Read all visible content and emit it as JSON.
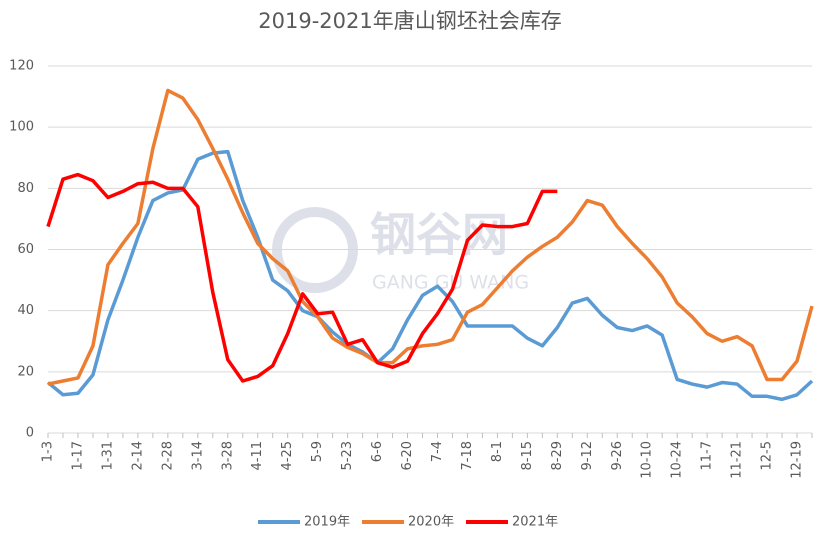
{
  "chart_data": {
    "type": "line",
    "title": "2019-2021年唐山钢坯社会库存",
    "watermark": {
      "name": "钢谷网",
      "subtitle": "GANG GU WANG"
    },
    "categories": [
      "1-3",
      null,
      "1-17",
      null,
      "1-31",
      null,
      "2-14",
      null,
      "2-28",
      null,
      "3-14",
      null,
      "3-28",
      null,
      "4-11",
      null,
      "4-25",
      null,
      "5-9",
      null,
      "5-23",
      null,
      "6-6",
      null,
      "6-20",
      null,
      "7-4",
      null,
      "7-18",
      null,
      "8-1",
      null,
      "8-15",
      null,
      "8-29",
      null,
      "9-12",
      null,
      "9-26",
      null,
      "10-10",
      null,
      "10-24",
      null,
      "11-7",
      null,
      "11-21",
      null,
      "12-5",
      null,
      "12-19",
      null
    ],
    "series": [
      {
        "name": "2019年",
        "color": "#5b9bd5",
        "values": [
          16.5,
          12.5,
          13,
          19,
          37,
          50,
          64,
          76,
          78.5,
          79.5,
          89.5,
          91.5,
          92,
          76,
          64,
          50,
          46.5,
          40,
          38,
          33,
          29,
          26.5,
          23,
          27.5,
          37,
          45,
          48,
          43,
          35,
          35,
          35,
          35,
          31,
          28.5,
          34.5,
          42.5,
          44,
          38.5,
          34.5,
          33.5,
          35,
          32,
          17.5,
          16,
          15,
          16.5,
          16,
          12,
          12,
          11,
          12.5,
          17
        ]
      },
      {
        "name": "2020年",
        "color": "#ed7d31",
        "values": [
          16,
          17,
          18,
          28.5,
          55,
          62,
          68.5,
          93,
          112,
          109.5,
          102.5,
          93,
          83,
          72,
          62,
          57,
          53,
          43,
          38,
          31,
          28,
          26,
          23,
          23,
          27.5,
          28.5,
          29,
          30.5,
          39.5,
          42,
          47.5,
          53,
          57.5,
          61,
          64,
          69,
          76,
          74.5,
          67.5,
          62,
          57,
          51,
          42.5,
          38,
          32.5,
          30,
          31.5,
          28.5,
          17.5,
          17.5,
          23.5,
          41.5
        ]
      },
      {
        "name": "2021年",
        "color": "#ff0000",
        "values": [
          67.5,
          83,
          84.5,
          82.5,
          77,
          79,
          81.5,
          82,
          80,
          80,
          74,
          46,
          24,
          17,
          18.5,
          22,
          32.5,
          45.5,
          39,
          39.5,
          29,
          30.5,
          23,
          21.5,
          23.5,
          32.5,
          39,
          47,
          63,
          68,
          67.5,
          67.5,
          68.5,
          79,
          79,
          null,
          null,
          null,
          null,
          null,
          null,
          null,
          null,
          null,
          null,
          null,
          null,
          null,
          null,
          null,
          null,
          null
        ]
      }
    ],
    "ylim": [
      0,
      120
    ],
    "yticks": [
      0,
      20,
      40,
      60,
      80,
      100,
      120
    ],
    "grid": true,
    "legend": "bottom"
  }
}
